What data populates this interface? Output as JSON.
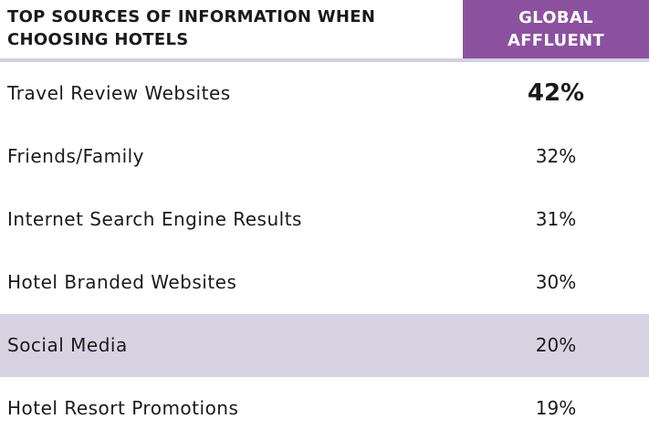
{
  "chart_data": {
    "type": "table",
    "title": "TOP SOURCES OF INFORMATION WHEN CHOOSING HOTELS",
    "column_header": [
      "GLOBAL",
      "AFFLUENT"
    ],
    "categories": [
      "Travel Review Websites",
      "Friends/Family",
      "Internet Search Engine Results",
      "Hotel Branded Websites",
      "Social Media",
      "Hotel Resort Promotions"
    ],
    "values": [
      42,
      32,
      31,
      30,
      20,
      19
    ],
    "value_labels": [
      "42%",
      "32%",
      "31%",
      "30%",
      "20%",
      "19%"
    ],
    "highlighted_row": "Social Media",
    "emphasized_row": "Travel Review Websites"
  },
  "colors": {
    "header_accent": "#8b519f",
    "highlight_row": "#d8d3e3",
    "rule": "#d4cfe2"
  }
}
